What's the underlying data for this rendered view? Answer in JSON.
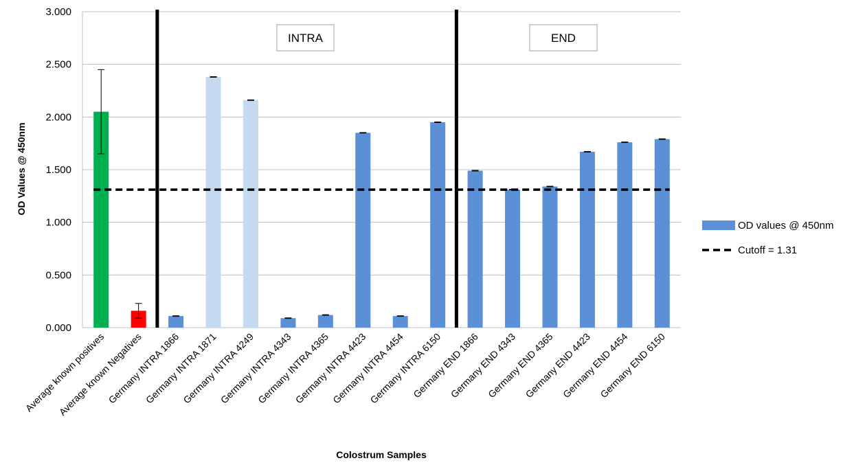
{
  "chart_data": {
    "type": "bar",
    "xlabel": "Colostrum Samples",
    "ylabel": "OD Values @ 450nm",
    "ylim": [
      0,
      3
    ],
    "yticks": [
      "0.000",
      "0.500",
      "1.000",
      "1.500",
      "2.000",
      "2.500",
      "3.000"
    ],
    "grid": true,
    "legend_position": "right",
    "categories": [
      "Average known positives",
      "Average known Negatives",
      "Germany INTRA 1866",
      "Germany INTRA 1871",
      "Germany INTRA 4249",
      "Germany INTRA 4343",
      "Germany INTRA 4365",
      "Germany INTRA 4423",
      "Germany INTRA 4454",
      "Germany INTRA 6150",
      "Germany END 1866",
      "Germany END 4343",
      "Germany END 4365",
      "Germany END 4423",
      "Germany END 4454",
      "Germany END 6150"
    ],
    "series": [
      {
        "name": "OD values @ 450nm",
        "color": "#5B8FD6",
        "values": [
          2.05,
          0.16,
          0.11,
          2.38,
          2.16,
          0.09,
          0.12,
          1.85,
          0.11,
          1.95,
          1.49,
          1.31,
          1.34,
          1.67,
          1.76,
          1.79
        ],
        "errors": [
          0.4,
          0.07,
          0.003,
          0.003,
          0.003,
          0.003,
          0.003,
          0.003,
          0.003,
          0.003,
          0.003,
          0.003,
          0.003,
          0.003,
          0.003,
          0.003
        ],
        "bar_colors": [
          "#00B050",
          "#FF0000",
          "#5B8FD6",
          "#C5D9F1",
          "#C5D9F1",
          "#5B8FD6",
          "#5B8FD6",
          "#5B8FD6",
          "#5B8FD6",
          "#5B8FD6",
          "#5B8FD6",
          "#5B8FD6",
          "#5B8FD6",
          "#5B8FD6",
          "#5B8FD6",
          "#5B8FD6"
        ]
      }
    ],
    "cutoff": {
      "name": "Cutoff = 1.31",
      "value": 1.31,
      "color": "#000000"
    },
    "regions": [
      {
        "label": "INTRA",
        "divider_before_index": 2
      },
      {
        "label": "END",
        "divider_before_index": 10
      }
    ]
  }
}
